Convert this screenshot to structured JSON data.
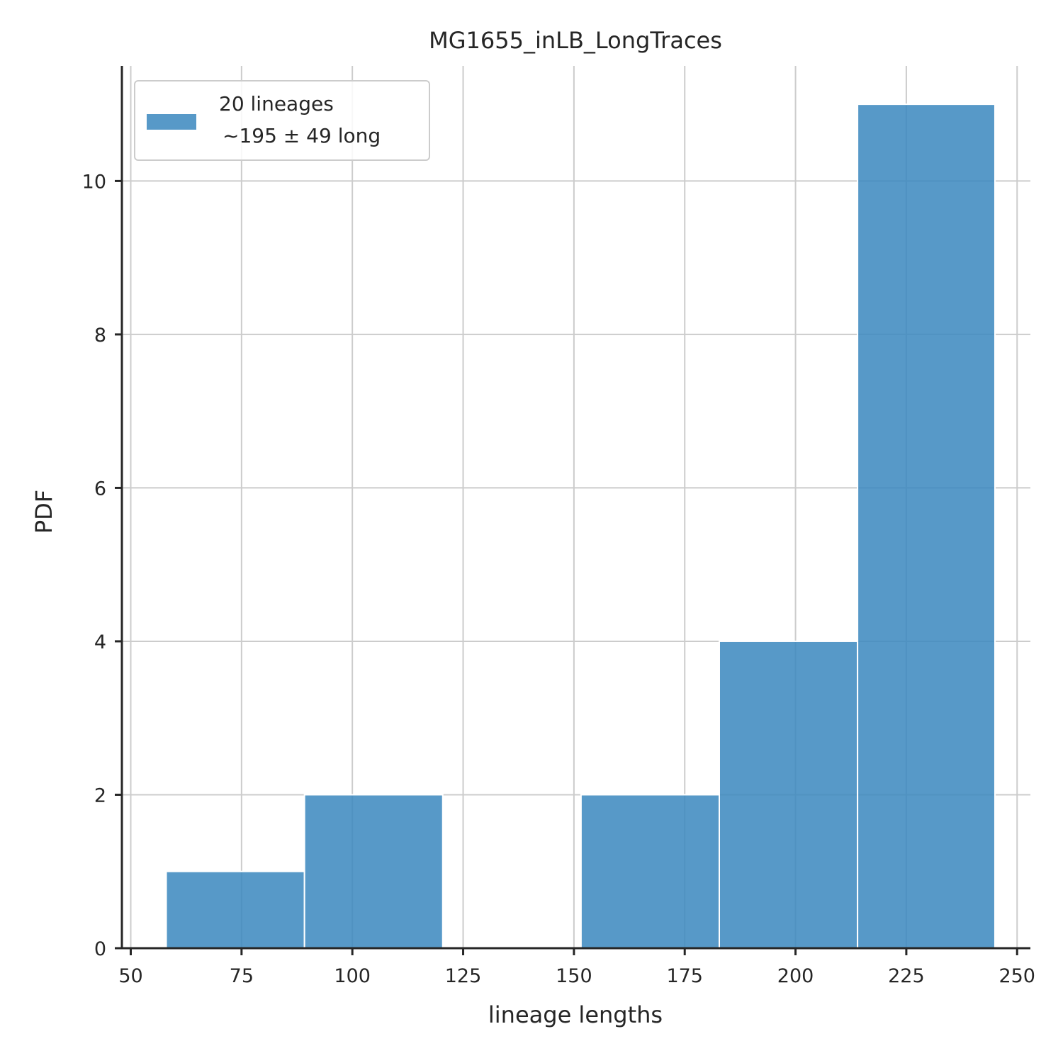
{
  "chart_data": {
    "type": "bar",
    "title": "MG1655_inLB_LongTraces",
    "xlabel": "lineage lengths",
    "ylabel": "PDF",
    "xlim": [
      48,
      253
    ],
    "ylim": [
      0,
      11.5
    ],
    "xticks": [
      50,
      75,
      100,
      125,
      150,
      175,
      200,
      225,
      250
    ],
    "yticks": [
      0,
      2,
      4,
      6,
      8,
      10
    ],
    "grid": true,
    "legend_position": "top-left",
    "bins": [
      {
        "start": 58,
        "end": 89.2,
        "value": 1
      },
      {
        "start": 89.2,
        "end": 120.4,
        "value": 2
      },
      {
        "start": 120.4,
        "end": 151.6,
        "value": 0
      },
      {
        "start": 151.6,
        "end": 182.8,
        "value": 2
      },
      {
        "start": 182.8,
        "end": 214,
        "value": 4
      },
      {
        "start": 214,
        "end": 245,
        "value": 11
      }
    ],
    "series": [
      {
        "name": "20 lineages ~195 ± 49 long",
        "color": "#3a87be"
      }
    ],
    "legend": {
      "line1": "20 lineages",
      "line2": "~195 ± 49 long"
    }
  }
}
